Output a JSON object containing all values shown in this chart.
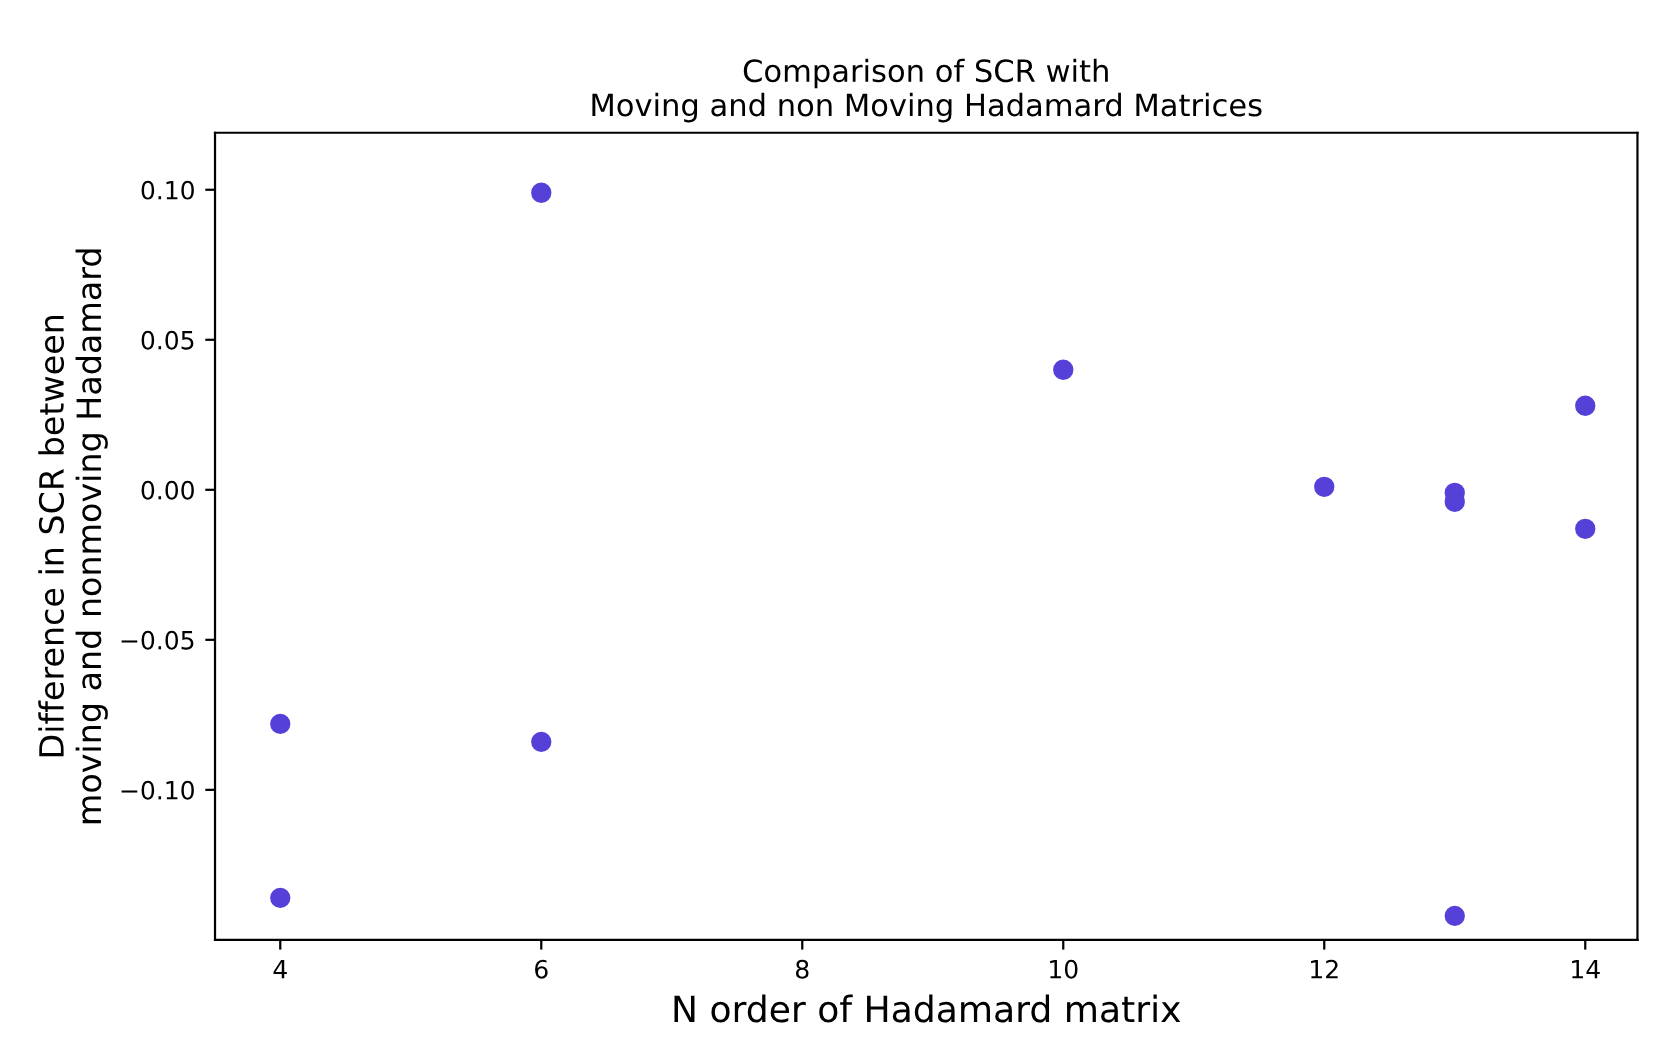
{
  "chart_data": {
    "type": "scatter",
    "title": "Comparison of SCR with\nMoving and non Moving Hadamard Matrices",
    "xlabel": "N order of Hadamard matrix",
    "ylabel": "Difference in SCR between\nmoving and nonmoving Hadamard",
    "series": [
      {
        "color": "#5540d8",
        "x": [
          4,
          4,
          6,
          6,
          10,
          12,
          13,
          13,
          13,
          14,
          14
        ],
        "values": [
          -0.078,
          -0.136,
          0.099,
          -0.084,
          0.04,
          0.001,
          -0.001,
          -0.004,
          -0.142,
          0.028,
          -0.013
        ]
      }
    ],
    "xlim": [
      3.5,
      14.4
    ],
    "xticks": [
      4,
      6,
      8,
      10,
      12,
      14
    ],
    "ylim": [
      -0.15,
      0.119
    ],
    "yticks": [
      {
        "value": -0.1,
        "label": "−0.10"
      },
      {
        "value": -0.05,
        "label": "−0.05"
      },
      {
        "value": 0,
        "label": "0.00"
      },
      {
        "value": 0.05,
        "label": "0.05"
      },
      {
        "value": 0.1,
        "label": "0.10"
      }
    ],
    "marker": "circle",
    "grid": false,
    "legend": false
  }
}
